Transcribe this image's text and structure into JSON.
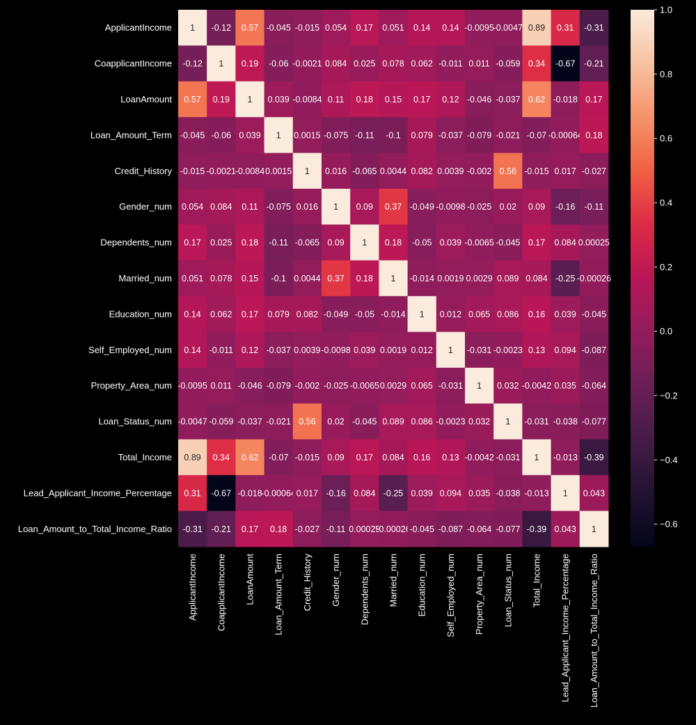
{
  "chart_data": {
    "type": "heatmap",
    "title": "",
    "labels": [
      "ApplicantIncome",
      "CoapplicantIncome",
      "LoanAmount",
      "Loan_Amount_Term",
      "Credit_History",
      "Gender_num",
      "Dependents_num",
      "Married_num",
      "Education_num",
      "Self_Employed_num",
      "Property_Area_num",
      "Loan_Status_num",
      "Total_Income",
      "Lead_Applicant_Income_Percentage",
      "Loan_Amount_to_Total_Income_Ratio"
    ],
    "values": [
      [
        "1",
        "-0.12",
        "0.57",
        "-0.045",
        "-0.015",
        "0.054",
        "0.17",
        "0.051",
        "0.14",
        "0.14",
        "-0.0095",
        "-0.0047",
        "0.89",
        "0.31",
        "-0.31"
      ],
      [
        "-0.12",
        "1",
        "0.19",
        "-0.06",
        "-0.0021",
        "0.084",
        "0.025",
        "0.078",
        "0.062",
        "-0.011",
        "0.011",
        "-0.059",
        "0.34",
        "-0.67",
        "-0.21"
      ],
      [
        "0.57",
        "0.19",
        "1",
        "0.039",
        "-0.0084",
        "0.11",
        "0.18",
        "0.15",
        "0.17",
        "0.12",
        "-0.046",
        "-0.037",
        "0.62",
        "-0.018",
        "0.17"
      ],
      [
        "-0.045",
        "-0.06",
        "0.039",
        "1",
        "0.0015",
        "-0.075",
        "-0.11",
        "-0.1",
        "0.079",
        "-0.037",
        "-0.079",
        "-0.021",
        "-0.07",
        "-0.00064",
        "0.18"
      ],
      [
        "-0.015",
        "-0.0021",
        "-0.0084",
        "0.0015",
        "1",
        "0.016",
        "-0.065",
        "0.0044",
        "0.082",
        "0.0039",
        "-0.002",
        "0.56",
        "-0.015",
        "0.017",
        "-0.027"
      ],
      [
        "0.054",
        "0.084",
        "0.11",
        "-0.075",
        "0.016",
        "1",
        "0.09",
        "0.37",
        "-0.049",
        "-0.0098",
        "-0.025",
        "0.02",
        "0.09",
        "-0.16",
        "-0.11"
      ],
      [
        "0.17",
        "0.025",
        "0.18",
        "-0.11",
        "-0.065",
        "0.09",
        "1",
        "0.18",
        "-0.05",
        "0.039",
        "-0.0065",
        "-0.045",
        "0.17",
        "0.084",
        "0.00025"
      ],
      [
        "0.051",
        "0.078",
        "0.15",
        "-0.1",
        "0.0044",
        "0.37",
        "0.18",
        "1",
        "-0.014",
        "0.0019",
        "0.0029",
        "0.089",
        "0.084",
        "-0.25",
        "-0.00026"
      ],
      [
        "0.14",
        "0.062",
        "0.17",
        "0.079",
        "0.082",
        "-0.049",
        "-0.05",
        "-0.014",
        "1",
        "0.012",
        "0.065",
        "0.086",
        "0.16",
        "0.039",
        "-0.045"
      ],
      [
        "0.14",
        "-0.011",
        "0.12",
        "-0.037",
        "0.0039",
        "-0.0098",
        "0.039",
        "0.0019",
        "0.012",
        "1",
        "-0.031",
        "-0.0023",
        "0.13",
        "0.094",
        "-0.087"
      ],
      [
        "-0.0095",
        "0.011",
        "-0.046",
        "-0.079",
        "-0.002",
        "-0.025",
        "-0.0065",
        "0.0029",
        "0.065",
        "-0.031",
        "1",
        "0.032",
        "-0.0042",
        "0.035",
        "-0.064"
      ],
      [
        "-0.0047",
        "-0.059",
        "-0.037",
        "-0.021",
        "0.56",
        "0.02",
        "-0.045",
        "0.089",
        "0.086",
        "-0.0023",
        "0.032",
        "1",
        "-0.031",
        "-0.038",
        "-0.077"
      ],
      [
        "0.89",
        "0.34",
        "0.62",
        "-0.07",
        "-0.015",
        "0.09",
        "0.17",
        "0.084",
        "0.16",
        "0.13",
        "-0.0042",
        "-0.031",
        "1",
        "-0.013",
        "-0.39"
      ],
      [
        "0.31",
        "-0.67",
        "-0.018",
        "-0.00064",
        "0.017",
        "-0.16",
        "0.084",
        "-0.25",
        "0.039",
        "0.094",
        "0.035",
        "-0.038",
        "-0.013",
        "1",
        "0.043"
      ],
      [
        "-0.31",
        "-0.21",
        "0.17",
        "0.18",
        "-0.027",
        "-0.11",
        "0.00025",
        "-0.00026",
        "-0.045",
        "-0.087",
        "-0.064",
        "-0.077",
        "-0.39",
        "0.043",
        "1"
      ]
    ],
    "colormap": "rocket",
    "vmin": -0.67,
    "vmax": 1.0,
    "colorbar_ticks": [
      "1.0",
      "0.8",
      "0.6",
      "0.4",
      "0.2",
      "0.0",
      "−0.2",
      "−0.4",
      "−0.6"
    ],
    "annotated": true,
    "background": "#000000"
  }
}
